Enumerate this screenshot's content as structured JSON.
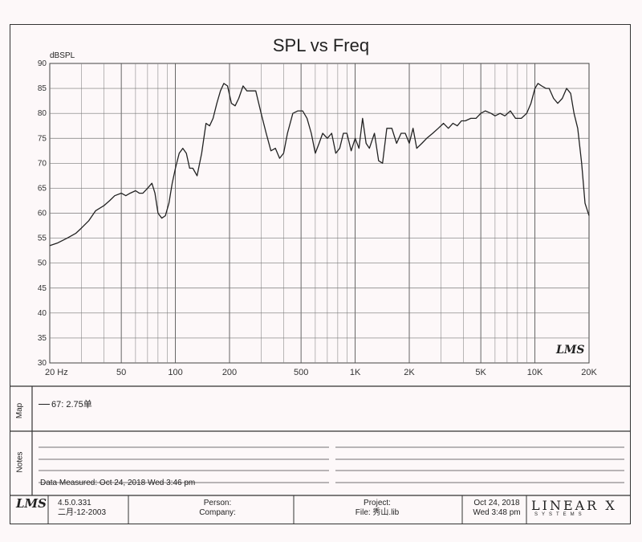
{
  "chart_data": {
    "type": "line",
    "title": "SPL vs Freq",
    "ylabel": "dBSPL",
    "xscale": "log",
    "xlim": [
      20,
      20000
    ],
    "ylim": [
      30,
      90
    ],
    "grid": true,
    "y_ticks": [
      "30",
      "35",
      "40",
      "45",
      "50",
      "55",
      "60",
      "65",
      "70",
      "75",
      "80",
      "85",
      "90"
    ],
    "x_ticks": [
      {
        "label": "20 Hz",
        "value": 20
      },
      {
        "label": "50",
        "value": 50
      },
      {
        "label": "100",
        "value": 100
      },
      {
        "label": "200",
        "value": 200
      },
      {
        "label": "500",
        "value": 500
      },
      {
        "label": "1K",
        "value": 1000
      },
      {
        "label": "2K",
        "value": 2000
      },
      {
        "label": "5K",
        "value": 5000
      },
      {
        "label": "10K",
        "value": 10000
      },
      {
        "label": "20K",
        "value": 20000
      }
    ],
    "series": [
      {
        "name": "67: 2.75单",
        "color": "#222222",
        "points": [
          [
            20,
            53.5
          ],
          [
            22,
            54
          ],
          [
            25,
            55
          ],
          [
            28,
            56
          ],
          [
            30,
            57
          ],
          [
            33,
            58.5
          ],
          [
            36,
            60.5
          ],
          [
            40,
            61.5
          ],
          [
            43,
            62.5
          ],
          [
            46,
            63.5
          ],
          [
            50,
            64
          ],
          [
            53,
            63.5
          ],
          [
            56,
            64
          ],
          [
            60,
            64.5
          ],
          [
            63,
            64
          ],
          [
            66,
            64
          ],
          [
            70,
            65
          ],
          [
            74,
            66
          ],
          [
            77,
            64
          ],
          [
            80,
            60
          ],
          [
            84,
            59
          ],
          [
            88,
            59.5
          ],
          [
            92,
            62
          ],
          [
            96,
            66
          ],
          [
            100,
            69
          ],
          [
            105,
            72
          ],
          [
            110,
            73
          ],
          [
            115,
            72
          ],
          [
            120,
            69
          ],
          [
            125,
            69
          ],
          [
            132,
            67.5
          ],
          [
            140,
            72
          ],
          [
            148,
            78
          ],
          [
            155,
            77.5
          ],
          [
            162,
            79
          ],
          [
            170,
            82
          ],
          [
            178,
            84.5
          ],
          [
            186,
            86
          ],
          [
            195,
            85.5
          ],
          [
            205,
            82
          ],
          [
            215,
            81.5
          ],
          [
            225,
            83
          ],
          [
            238,
            85.5
          ],
          [
            250,
            84.5
          ],
          [
            265,
            84.5
          ],
          [
            280,
            84.5
          ],
          [
            300,
            80
          ],
          [
            320,
            76
          ],
          [
            340,
            72.5
          ],
          [
            360,
            73
          ],
          [
            380,
            71
          ],
          [
            400,
            72
          ],
          [
            420,
            76
          ],
          [
            450,
            80
          ],
          [
            480,
            80.5
          ],
          [
            510,
            80.5
          ],
          [
            540,
            79
          ],
          [
            570,
            76
          ],
          [
            600,
            72
          ],
          [
            630,
            74
          ],
          [
            660,
            76
          ],
          [
            700,
            75
          ],
          [
            740,
            76
          ],
          [
            780,
            72
          ],
          [
            820,
            73
          ],
          [
            860,
            76
          ],
          [
            900,
            76
          ],
          [
            950,
            72.5
          ],
          [
            1000,
            75
          ],
          [
            1050,
            73
          ],
          [
            1100,
            79
          ],
          [
            1150,
            74
          ],
          [
            1200,
            73
          ],
          [
            1280,
            76
          ],
          [
            1350,
            70.5
          ],
          [
            1420,
            70
          ],
          [
            1500,
            77
          ],
          [
            1600,
            77
          ],
          [
            1700,
            74
          ],
          [
            1800,
            76
          ],
          [
            1900,
            76
          ],
          [
            2000,
            74
          ],
          [
            2100,
            77
          ],
          [
            2200,
            73
          ],
          [
            2350,
            74
          ],
          [
            2500,
            75
          ],
          [
            2700,
            76
          ],
          [
            2900,
            77
          ],
          [
            3100,
            78
          ],
          [
            3300,
            77
          ],
          [
            3500,
            78
          ],
          [
            3700,
            77.5
          ],
          [
            3900,
            78.5
          ],
          [
            4100,
            78.5
          ],
          [
            4400,
            79
          ],
          [
            4700,
            79
          ],
          [
            5000,
            80
          ],
          [
            5300,
            80.5
          ],
          [
            5700,
            80
          ],
          [
            6000,
            79.5
          ],
          [
            6400,
            80
          ],
          [
            6800,
            79.5
          ],
          [
            7300,
            80.5
          ],
          [
            7800,
            79
          ],
          [
            8400,
            79
          ],
          [
            9000,
            80
          ],
          [
            9500,
            82
          ],
          [
            10000,
            85
          ],
          [
            10400,
            86
          ],
          [
            10900,
            85.5
          ],
          [
            11500,
            85
          ],
          [
            12000,
            85
          ],
          [
            12700,
            83
          ],
          [
            13400,
            82
          ],
          [
            14200,
            83
          ],
          [
            15000,
            85
          ],
          [
            15800,
            84
          ],
          [
            16500,
            80
          ],
          [
            17300,
            77
          ],
          [
            18200,
            70
          ],
          [
            19000,
            62
          ],
          [
            20000,
            59.5
          ]
        ]
      }
    ],
    "annotation": "LMS"
  },
  "legend_label": "67: 2.75单",
  "sections": {
    "map": "Map",
    "notes": "Notes"
  },
  "data_measured": "Data Measured: Oct 24, 2018  Wed  3:46 pm",
  "footer": {
    "logo": "LMS",
    "version": "4.5.0.331",
    "version_date": "二月-12-2003",
    "person": "Person:",
    "company": "Company:",
    "project": "Project:",
    "file": "File: 秀山.lib",
    "date": "Oct 24, 2018",
    "time": "Wed  3:48 pm",
    "brand": "LINEAR X",
    "brand_sub": "SYSTEMS"
  }
}
